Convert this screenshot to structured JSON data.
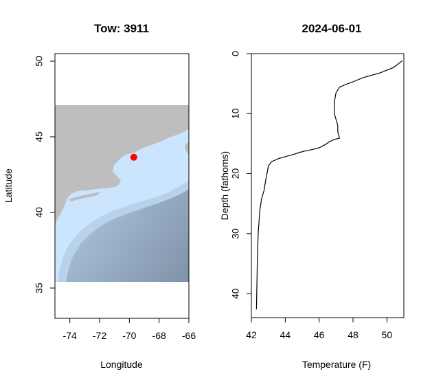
{
  "chart_data": [
    {
      "type": "map",
      "title": "Tow: 3911",
      "xlabel": "Longitude",
      "ylabel": "Latitude",
      "xlim": [
        -75,
        -66
      ],
      "ylim": [
        33,
        50.5
      ],
      "xticks": [
        -74,
        -72,
        -70,
        -68,
        -66
      ],
      "yticks": [
        35,
        40,
        45,
        50
      ],
      "raster_extent": {
        "lon": [
          -75,
          -66
        ],
        "lat": [
          35,
          46.9
        ]
      },
      "point": {
        "lon": -69.7,
        "lat": 43.65
      },
      "colors": {
        "land": "#bebebe",
        "shallow": "#cce5ff",
        "deep": "#7f93a8",
        "point": "#ff0000"
      }
    },
    {
      "type": "line",
      "title": "2024-06-01",
      "xlabel": "Temperature (F)",
      "ylabel": "Depth (fathoms)",
      "xlim": [
        42,
        51
      ],
      "ylim": [
        44,
        0
      ],
      "xticks": [
        42,
        44,
        46,
        48,
        50
      ],
      "yticks": [
        0,
        10,
        20,
        30,
        40
      ],
      "series": [
        {
          "x": [
            50.9,
            50.4,
            49.6,
            48.6,
            48.0,
            47.6,
            47.2,
            47.0,
            46.9,
            46.9,
            47.0,
            47.1,
            47.1,
            47.2,
            46.9,
            46.6,
            46.4,
            46.0,
            45.6,
            45.2,
            44.8,
            44.5,
            44.1,
            43.6,
            43.2,
            43.0,
            42.95,
            42.85,
            42.75,
            42.6,
            42.5,
            42.4,
            42.35,
            42.3
          ],
          "y": [
            1.2,
            2.3,
            3.2,
            4.0,
            4.7,
            5.1,
            5.6,
            6.5,
            8.0,
            10.0,
            11.0,
            12.0,
            13.0,
            14.1,
            14.3,
            14.7,
            15.1,
            15.7,
            16.0,
            16.2,
            16.5,
            16.8,
            17.1,
            17.5,
            18.0,
            18.7,
            19.6,
            21.0,
            22.8,
            24.2,
            26.2,
            30.0,
            35.0,
            42.6
          ]
        }
      ]
    }
  ]
}
